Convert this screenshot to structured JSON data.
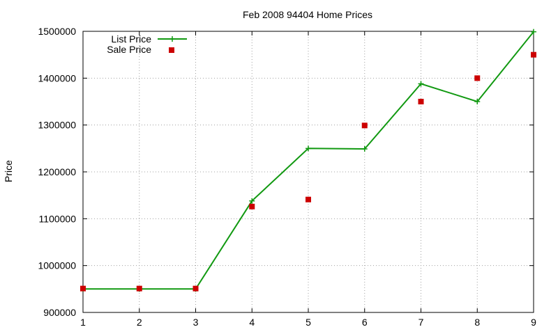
{
  "chart_data": {
    "type": "line",
    "title": "Feb 2008 94404 Home Prices",
    "xlabel": "",
    "ylabel": "Price",
    "xlim": [
      1,
      9
    ],
    "ylim": [
      900000,
      1500000
    ],
    "x_ticks": [
      "1",
      "2",
      "3",
      "4",
      "5",
      "6",
      "7",
      "8",
      "9"
    ],
    "y_ticks": [
      "900000",
      "1000000",
      "1100000",
      "1200000",
      "1300000",
      "1400000",
      "1500000"
    ],
    "grid": true,
    "legend_position": "top-left",
    "x": [
      1,
      2,
      3,
      4,
      5,
      6,
      7,
      8,
      9
    ],
    "series": [
      {
        "name": "List Price",
        "style": "line-with-plus-markers",
        "color": "#119911",
        "values": [
          950000,
          950000,
          950000,
          1138000,
          1250000,
          1249000,
          1388000,
          1350000,
          1499000
        ]
      },
      {
        "name": "Sale Price",
        "style": "square-points",
        "color": "#cc0000",
        "values": [
          951000,
          951000,
          951000,
          1126000,
          1141000,
          1299000,
          1350000,
          1400000,
          1450000
        ]
      }
    ]
  }
}
